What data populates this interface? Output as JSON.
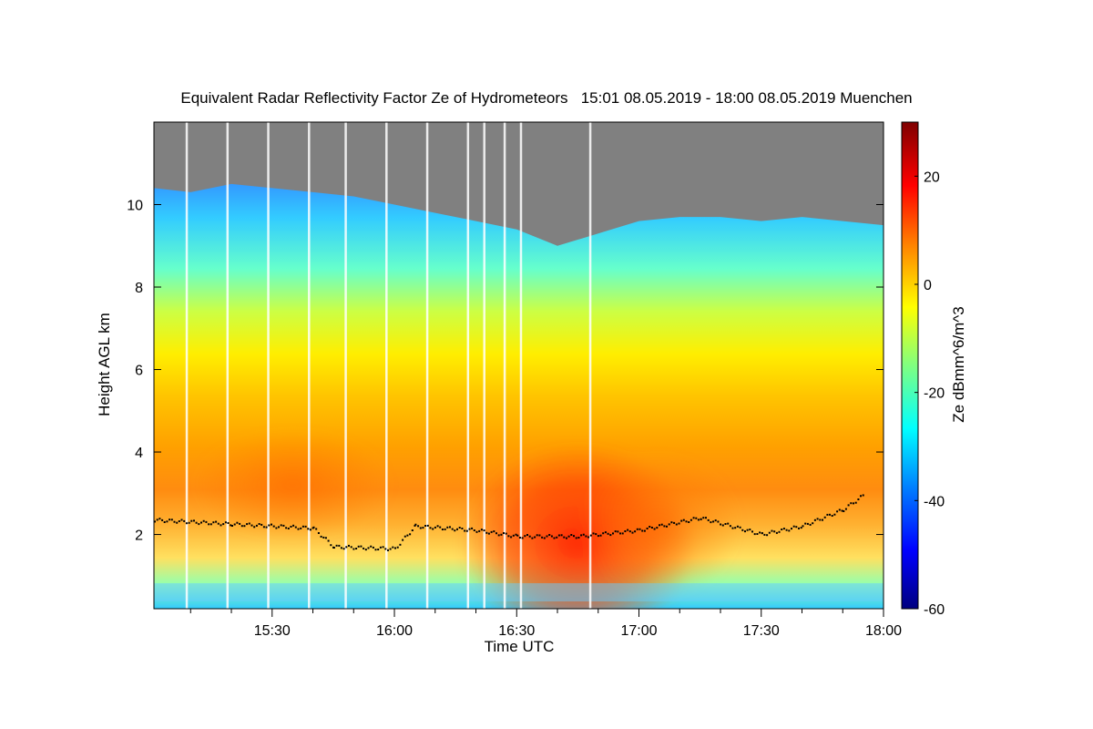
{
  "chart_data": {
    "type": "heatmap",
    "title": "Equivalent Radar Reflectivity Factor Ze of Hydrometeors   15:01 08.05.2019 - 18:00 08.05.2019 Muenchen",
    "xlabel": "Time UTC",
    "ylabel": "Height AGL km",
    "x_ticks": [
      "15:30",
      "16:00",
      "16:30",
      "17:00",
      "17:30",
      "18:00"
    ],
    "x_range": [
      "15:01",
      "18:00"
    ],
    "y_ticks": [
      2,
      4,
      6,
      8,
      10
    ],
    "y_range": [
      0.2,
      12
    ],
    "colorbar": {
      "label": "Ze dBmm^6/m^3",
      "range": [
        -60,
        30
      ],
      "ticks": [
        20,
        0,
        -20,
        -40,
        -60
      ]
    },
    "no_signal_color": "#808080",
    "echo_top_km": [
      {
        "t": "15:01",
        "h": 10.4
      },
      {
        "t": "15:10",
        "h": 10.3
      },
      {
        "t": "15:20",
        "h": 10.5
      },
      {
        "t": "15:30",
        "h": 10.4
      },
      {
        "t": "15:40",
        "h": 10.3
      },
      {
        "t": "15:50",
        "h": 10.2
      },
      {
        "t": "16:00",
        "h": 10.0
      },
      {
        "t": "16:10",
        "h": 9.8
      },
      {
        "t": "16:20",
        "h": 9.6
      },
      {
        "t": "16:30",
        "h": 9.4
      },
      {
        "t": "16:40",
        "h": 9.0
      },
      {
        "t": "16:50",
        "h": 9.3
      },
      {
        "t": "17:00",
        "h": 9.6
      },
      {
        "t": "17:10",
        "h": 9.7
      },
      {
        "t": "17:20",
        "h": 9.7
      },
      {
        "t": "17:30",
        "h": 9.6
      },
      {
        "t": "17:40",
        "h": 9.7
      },
      {
        "t": "17:50",
        "h": 9.6
      },
      {
        "t": "18:00",
        "h": 9.5
      }
    ],
    "melting_layer_km": [
      {
        "t": "15:01",
        "h": 2.35
      },
      {
        "t": "15:20",
        "h": 2.25
      },
      {
        "t": "15:40",
        "h": 2.15
      },
      {
        "t": "15:45",
        "h": 1.7
      },
      {
        "t": "16:00",
        "h": 1.65
      },
      {
        "t": "16:05",
        "h": 2.2
      },
      {
        "t": "16:20",
        "h": 2.1
      },
      {
        "t": "16:30",
        "h": 1.95
      },
      {
        "t": "16:45",
        "h": 1.95
      },
      {
        "t": "17:00",
        "h": 2.1
      },
      {
        "t": "17:15",
        "h": 2.4
      },
      {
        "t": "17:30",
        "h": 2.0
      },
      {
        "t": "17:40",
        "h": 2.2
      },
      {
        "t": "17:50",
        "h": 2.6
      },
      {
        "t": "17:55",
        "h": 2.95
      }
    ],
    "data_gaps_utc": [
      "15:09",
      "15:19",
      "15:29",
      "15:39",
      "15:48",
      "15:58",
      "16:08",
      "16:18",
      "16:22",
      "16:27",
      "16:31",
      "16:48"
    ]
  }
}
